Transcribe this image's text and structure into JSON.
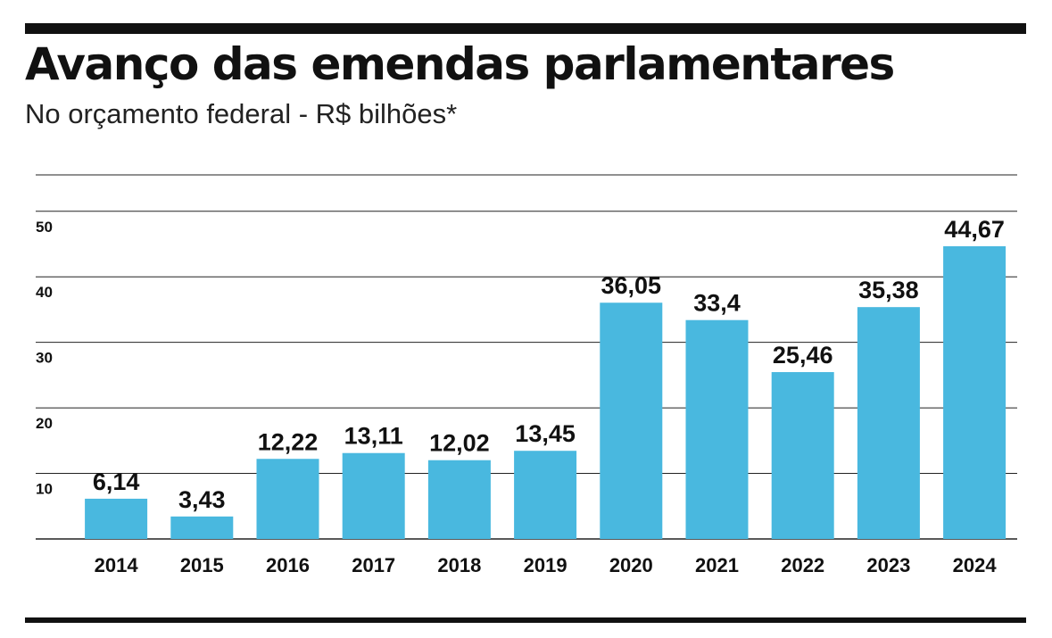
{
  "header": {
    "title": "Avanço das emendas parlamentares",
    "subtitle": "No orçamento federal - R$ bilhões*"
  },
  "colors": {
    "bar": "#49b8df",
    "grid": "#222222",
    "rule": "#111111",
    "text": "#111111"
  },
  "chart_data": {
    "type": "bar",
    "title": "Avanço das emendas parlamentares",
    "subtitle": "No orçamento federal - R$ bilhões*",
    "categories": [
      "2014",
      "2015",
      "2016",
      "2017",
      "2018",
      "2019",
      "2020",
      "2021",
      "2022",
      "2023",
      "2024"
    ],
    "values": [
      6.14,
      3.43,
      12.22,
      13.11,
      12.02,
      13.45,
      36.05,
      33.4,
      25.46,
      35.38,
      44.67
    ],
    "value_labels": [
      "6,14",
      "3,43",
      "12,22",
      "13,11",
      "12,02",
      "13,45",
      "36,05",
      "33,4",
      "25,46",
      "35,38",
      "44,67"
    ],
    "yticks": [
      10,
      20,
      30,
      40,
      50
    ],
    "ylim": [
      0,
      50
    ],
    "xlabel": "",
    "ylabel": "",
    "grid": true,
    "legend": "none"
  }
}
